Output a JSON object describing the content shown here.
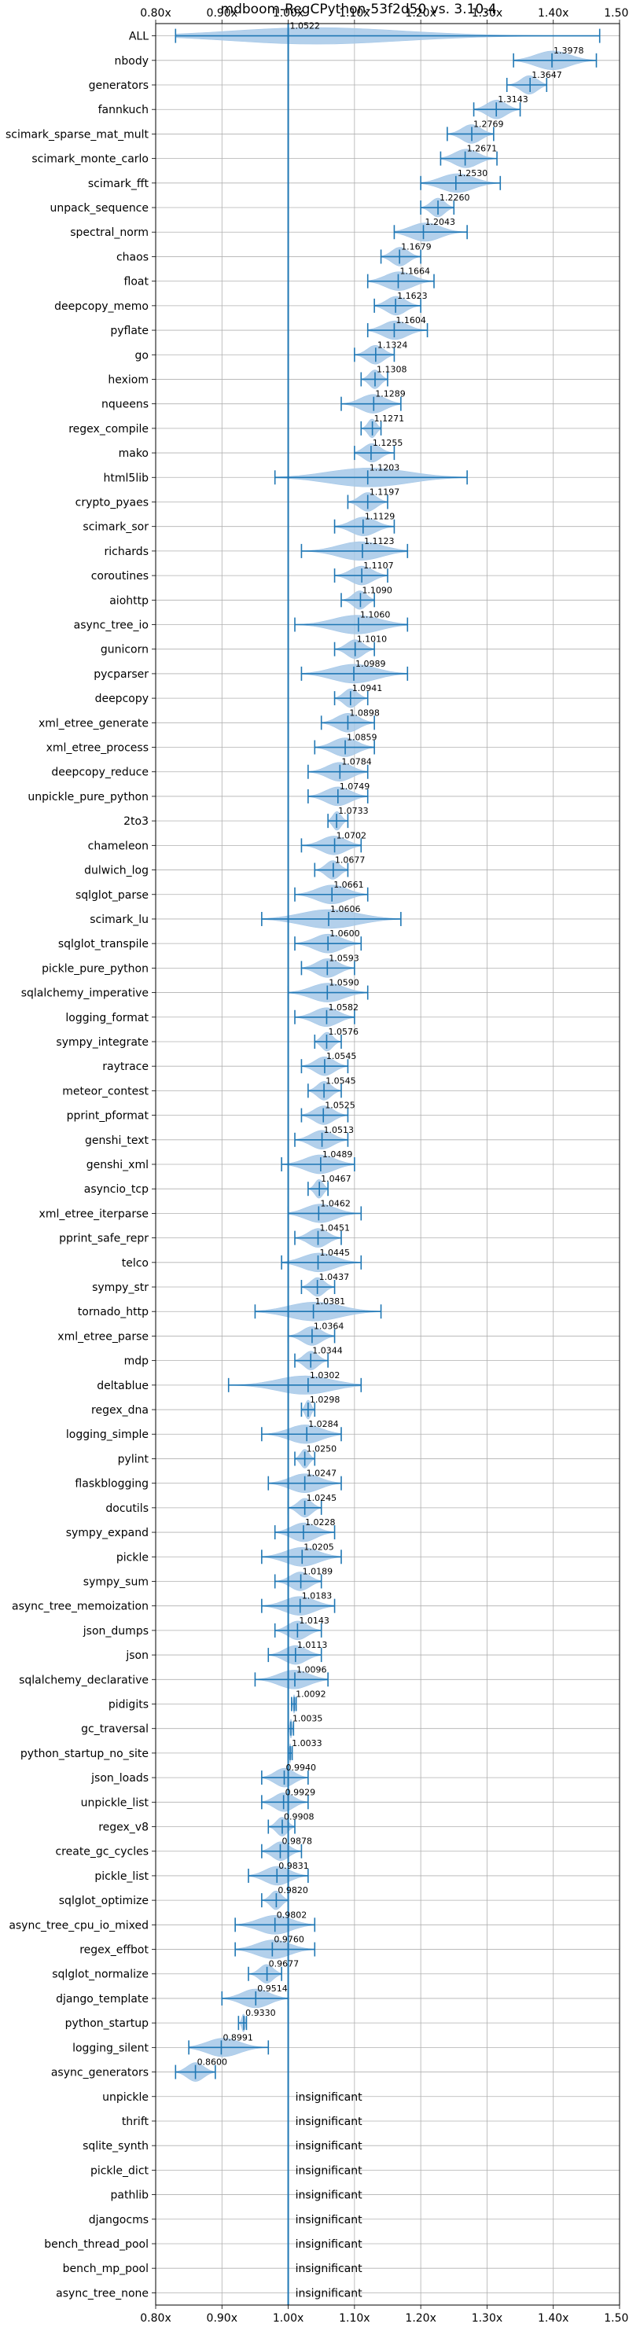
{
  "chart_data": {
    "type": "violin",
    "title": "mdboom-RegCPython-53f2d50 vs. 3.10.4",
    "xlabel": "",
    "ylabel": "",
    "x_tick_labels": [
      "0.80x",
      "0.90x",
      "1.00x",
      "1.10x",
      "1.20x",
      "1.30x",
      "1.40x",
      "1.50x"
    ],
    "x_ticks": [
      0.8,
      0.9,
      1.0,
      1.1,
      1.2,
      1.3,
      1.4,
      1.5
    ],
    "xlim": [
      0.8,
      1.5
    ],
    "reference_line": 1.0,
    "grid": true,
    "accent_color": "#1f77b4",
    "violin_fill": "#a6c8e8",
    "insignificant_label": "insignificant",
    "benchmarks": [
      {
        "name": "ALL",
        "label": "1.0522",
        "median": 1.0,
        "lo": 0.83,
        "hi": 1.47
      },
      {
        "name": "nbody",
        "label": "1.3978",
        "median": 1.398,
        "lo": 1.34,
        "hi": 1.465
      },
      {
        "name": "generators",
        "label": "1.3647",
        "median": 1.365,
        "lo": 1.33,
        "hi": 1.39
      },
      {
        "name": "fannkuch",
        "label": "1.3143",
        "median": 1.314,
        "lo": 1.28,
        "hi": 1.35
      },
      {
        "name": "scimark_sparse_mat_mult",
        "label": "1.2769",
        "median": 1.277,
        "lo": 1.24,
        "hi": 1.31
      },
      {
        "name": "scimark_monte_carlo",
        "label": "1.2671",
        "median": 1.267,
        "lo": 1.23,
        "hi": 1.315
      },
      {
        "name": "scimark_fft",
        "label": "1.2530",
        "median": 1.253,
        "lo": 1.2,
        "hi": 1.32
      },
      {
        "name": "unpack_sequence",
        "label": "1.2260",
        "median": 1.226,
        "lo": 1.2,
        "hi": 1.25
      },
      {
        "name": "spectral_norm",
        "label": "1.2043",
        "median": 1.204,
        "lo": 1.16,
        "hi": 1.27
      },
      {
        "name": "chaos",
        "label": "1.1679",
        "median": 1.168,
        "lo": 1.14,
        "hi": 1.2
      },
      {
        "name": "float",
        "label": "1.1664",
        "median": 1.166,
        "lo": 1.12,
        "hi": 1.22
      },
      {
        "name": "deepcopy_memo",
        "label": "1.1623",
        "median": 1.162,
        "lo": 1.13,
        "hi": 1.2
      },
      {
        "name": "pyflate",
        "label": "1.1604",
        "median": 1.16,
        "lo": 1.12,
        "hi": 1.21
      },
      {
        "name": "go",
        "label": "1.1324",
        "median": 1.132,
        "lo": 1.1,
        "hi": 1.16
      },
      {
        "name": "hexiom",
        "label": "1.1308",
        "median": 1.131,
        "lo": 1.11,
        "hi": 1.15
      },
      {
        "name": "nqueens",
        "label": "1.1289",
        "median": 1.129,
        "lo": 1.08,
        "hi": 1.17
      },
      {
        "name": "regex_compile",
        "label": "1.1271",
        "median": 1.127,
        "lo": 1.11,
        "hi": 1.14
      },
      {
        "name": "mako",
        "label": "1.1255",
        "median": 1.125,
        "lo": 1.1,
        "hi": 1.16
      },
      {
        "name": "html5lib",
        "label": "1.1203",
        "median": 1.12,
        "lo": 0.98,
        "hi": 1.27
      },
      {
        "name": "crypto_pyaes",
        "label": "1.1197",
        "median": 1.12,
        "lo": 1.09,
        "hi": 1.15
      },
      {
        "name": "scimark_sor",
        "label": "1.1129",
        "median": 1.113,
        "lo": 1.07,
        "hi": 1.16
      },
      {
        "name": "richards",
        "label": "1.1123",
        "median": 1.112,
        "lo": 1.02,
        "hi": 1.18
      },
      {
        "name": "coroutines",
        "label": "1.1107",
        "median": 1.111,
        "lo": 1.07,
        "hi": 1.15
      },
      {
        "name": "aiohttp",
        "label": "1.1090",
        "median": 1.109,
        "lo": 1.08,
        "hi": 1.13
      },
      {
        "name": "async_tree_io",
        "label": "1.1060",
        "median": 1.106,
        "lo": 1.01,
        "hi": 1.18
      },
      {
        "name": "gunicorn",
        "label": "1.1010",
        "median": 1.101,
        "lo": 1.07,
        "hi": 1.13
      },
      {
        "name": "pycparser",
        "label": "1.0989",
        "median": 1.099,
        "lo": 1.02,
        "hi": 1.18
      },
      {
        "name": "deepcopy",
        "label": "1.0941",
        "median": 1.094,
        "lo": 1.07,
        "hi": 1.12
      },
      {
        "name": "xml_etree_generate",
        "label": "1.0898",
        "median": 1.09,
        "lo": 1.05,
        "hi": 1.13
      },
      {
        "name": "xml_etree_process",
        "label": "1.0859",
        "median": 1.086,
        "lo": 1.04,
        "hi": 1.13
      },
      {
        "name": "deepcopy_reduce",
        "label": "1.0784",
        "median": 1.078,
        "lo": 1.03,
        "hi": 1.12
      },
      {
        "name": "unpickle_pure_python",
        "label": "1.0749",
        "median": 1.075,
        "lo": 1.03,
        "hi": 1.12
      },
      {
        "name": "2to3",
        "label": "1.0733",
        "median": 1.073,
        "lo": 1.06,
        "hi": 1.09
      },
      {
        "name": "chameleon",
        "label": "1.0702",
        "median": 1.07,
        "lo": 1.02,
        "hi": 1.11
      },
      {
        "name": "dulwich_log",
        "label": "1.0677",
        "median": 1.068,
        "lo": 1.04,
        "hi": 1.09
      },
      {
        "name": "sqlglot_parse",
        "label": "1.0661",
        "median": 1.066,
        "lo": 1.01,
        "hi": 1.12
      },
      {
        "name": "scimark_lu",
        "label": "1.0606",
        "median": 1.061,
        "lo": 0.96,
        "hi": 1.17
      },
      {
        "name": "sqlglot_transpile",
        "label": "1.0600",
        "median": 1.06,
        "lo": 1.01,
        "hi": 1.11
      },
      {
        "name": "pickle_pure_python",
        "label": "1.0593",
        "median": 1.059,
        "lo": 1.02,
        "hi": 1.1
      },
      {
        "name": "sqlalchemy_imperative",
        "label": "1.0590",
        "median": 1.059,
        "lo": 1.0,
        "hi": 1.12
      },
      {
        "name": "logging_format",
        "label": "1.0582",
        "median": 1.058,
        "lo": 1.01,
        "hi": 1.1
      },
      {
        "name": "sympy_integrate",
        "label": "1.0576",
        "median": 1.058,
        "lo": 1.04,
        "hi": 1.08
      },
      {
        "name": "raytrace",
        "label": "1.0545",
        "median": 1.055,
        "lo": 1.02,
        "hi": 1.09
      },
      {
        "name": "meteor_contest",
        "label": "1.0545",
        "median": 1.054,
        "lo": 1.03,
        "hi": 1.08
      },
      {
        "name": "pprint_pformat",
        "label": "1.0525",
        "median": 1.053,
        "lo": 1.02,
        "hi": 1.09
      },
      {
        "name": "genshi_text",
        "label": "1.0513",
        "median": 1.051,
        "lo": 1.01,
        "hi": 1.09
      },
      {
        "name": "genshi_xml",
        "label": "1.0489",
        "median": 1.049,
        "lo": 0.99,
        "hi": 1.1
      },
      {
        "name": "asyncio_tcp",
        "label": "1.0467",
        "median": 1.047,
        "lo": 1.03,
        "hi": 1.06
      },
      {
        "name": "xml_etree_iterparse",
        "label": "1.0462",
        "median": 1.046,
        "lo": 1.0,
        "hi": 1.11
      },
      {
        "name": "pprint_safe_repr",
        "label": "1.0451",
        "median": 1.045,
        "lo": 1.01,
        "hi": 1.08
      },
      {
        "name": "telco",
        "label": "1.0445",
        "median": 1.045,
        "lo": 0.99,
        "hi": 1.11
      },
      {
        "name": "sympy_str",
        "label": "1.0437",
        "median": 1.044,
        "lo": 1.02,
        "hi": 1.07
      },
      {
        "name": "tornado_http",
        "label": "1.0381",
        "median": 1.038,
        "lo": 0.95,
        "hi": 1.14
      },
      {
        "name": "xml_etree_parse",
        "label": "1.0364",
        "median": 1.036,
        "lo": 1.0,
        "hi": 1.07
      },
      {
        "name": "mdp",
        "label": "1.0344",
        "median": 1.034,
        "lo": 1.01,
        "hi": 1.06
      },
      {
        "name": "deltablue",
        "label": "1.0302",
        "median": 1.03,
        "lo": 0.91,
        "hi": 1.11
      },
      {
        "name": "regex_dna",
        "label": "1.0298",
        "median": 1.03,
        "lo": 1.02,
        "hi": 1.04
      },
      {
        "name": "logging_simple",
        "label": "1.0284",
        "median": 1.028,
        "lo": 0.96,
        "hi": 1.08
      },
      {
        "name": "pylint",
        "label": "1.0250",
        "median": 1.025,
        "lo": 1.01,
        "hi": 1.04
      },
      {
        "name": "flaskblogging",
        "label": "1.0247",
        "median": 1.025,
        "lo": 0.97,
        "hi": 1.08
      },
      {
        "name": "docutils",
        "label": "1.0245",
        "median": 1.025,
        "lo": 1.0,
        "hi": 1.05
      },
      {
        "name": "sympy_expand",
        "label": "1.0228",
        "median": 1.023,
        "lo": 0.98,
        "hi": 1.07
      },
      {
        "name": "pickle",
        "label": "1.0205",
        "median": 1.021,
        "lo": 0.96,
        "hi": 1.08
      },
      {
        "name": "sympy_sum",
        "label": "1.0189",
        "median": 1.019,
        "lo": 0.98,
        "hi": 1.05
      },
      {
        "name": "async_tree_memoization",
        "label": "1.0183",
        "median": 1.018,
        "lo": 0.96,
        "hi": 1.07
      },
      {
        "name": "json_dumps",
        "label": "1.0143",
        "median": 1.014,
        "lo": 0.98,
        "hi": 1.05
      },
      {
        "name": "json",
        "label": "1.0113",
        "median": 1.011,
        "lo": 0.97,
        "hi": 1.05
      },
      {
        "name": "sqlalchemy_declarative",
        "label": "1.0096",
        "median": 1.01,
        "lo": 0.95,
        "hi": 1.06
      },
      {
        "name": "pidigits",
        "label": "1.0092",
        "median": 1.009,
        "lo": 1.005,
        "hi": 1.012
      },
      {
        "name": "gc_traversal",
        "label": "1.0035",
        "median": 1.004,
        "lo": 1.0,
        "hi": 1.008
      },
      {
        "name": "python_startup_no_site",
        "label": "1.0033",
        "median": 1.003,
        "lo": 1.0,
        "hi": 1.006
      },
      {
        "name": "json_loads",
        "label": "0.9940",
        "median": 0.994,
        "lo": 0.96,
        "hi": 1.03
      },
      {
        "name": "unpickle_list",
        "label": "0.9929",
        "median": 0.993,
        "lo": 0.96,
        "hi": 1.03
      },
      {
        "name": "regex_v8",
        "label": "0.9908",
        "median": 0.991,
        "lo": 0.97,
        "hi": 1.01
      },
      {
        "name": "create_gc_cycles",
        "label": "0.9878",
        "median": 0.988,
        "lo": 0.96,
        "hi": 1.02
      },
      {
        "name": "pickle_list",
        "label": "0.9831",
        "median": 0.983,
        "lo": 0.94,
        "hi": 1.03
      },
      {
        "name": "sqlglot_optimize",
        "label": "0.9820",
        "median": 0.982,
        "lo": 0.96,
        "hi": 1.0
      },
      {
        "name": "async_tree_cpu_io_mixed",
        "label": "0.9802",
        "median": 0.98,
        "lo": 0.92,
        "hi": 1.04
      },
      {
        "name": "regex_effbot",
        "label": "0.9760",
        "median": 0.976,
        "lo": 0.92,
        "hi": 1.04
      },
      {
        "name": "sqlglot_normalize",
        "label": "0.9677",
        "median": 0.968,
        "lo": 0.94,
        "hi": 0.99
      },
      {
        "name": "django_template",
        "label": "0.9514",
        "median": 0.951,
        "lo": 0.9,
        "hi": 1.0
      },
      {
        "name": "python_startup",
        "label": "0.9330",
        "median": 0.933,
        "lo": 0.925,
        "hi": 0.937
      },
      {
        "name": "logging_silent",
        "label": "0.8991",
        "median": 0.899,
        "lo": 0.85,
        "hi": 0.97
      },
      {
        "name": "async_generators",
        "label": "0.8600",
        "median": 0.86,
        "lo": 0.83,
        "hi": 0.89
      },
      {
        "name": "unpickle",
        "label": "insignificant",
        "insignificant": true
      },
      {
        "name": "thrift",
        "label": "insignificant",
        "insignificant": true
      },
      {
        "name": "sqlite_synth",
        "label": "insignificant",
        "insignificant": true
      },
      {
        "name": "pickle_dict",
        "label": "insignificant",
        "insignificant": true
      },
      {
        "name": "pathlib",
        "label": "insignificant",
        "insignificant": true
      },
      {
        "name": "djangocms",
        "label": "insignificant",
        "insignificant": true
      },
      {
        "name": "bench_thread_pool",
        "label": "insignificant",
        "insignificant": true
      },
      {
        "name": "bench_mp_pool",
        "label": "insignificant",
        "insignificant": true
      },
      {
        "name": "async_tree_none",
        "label": "insignificant",
        "insignificant": true
      }
    ]
  }
}
